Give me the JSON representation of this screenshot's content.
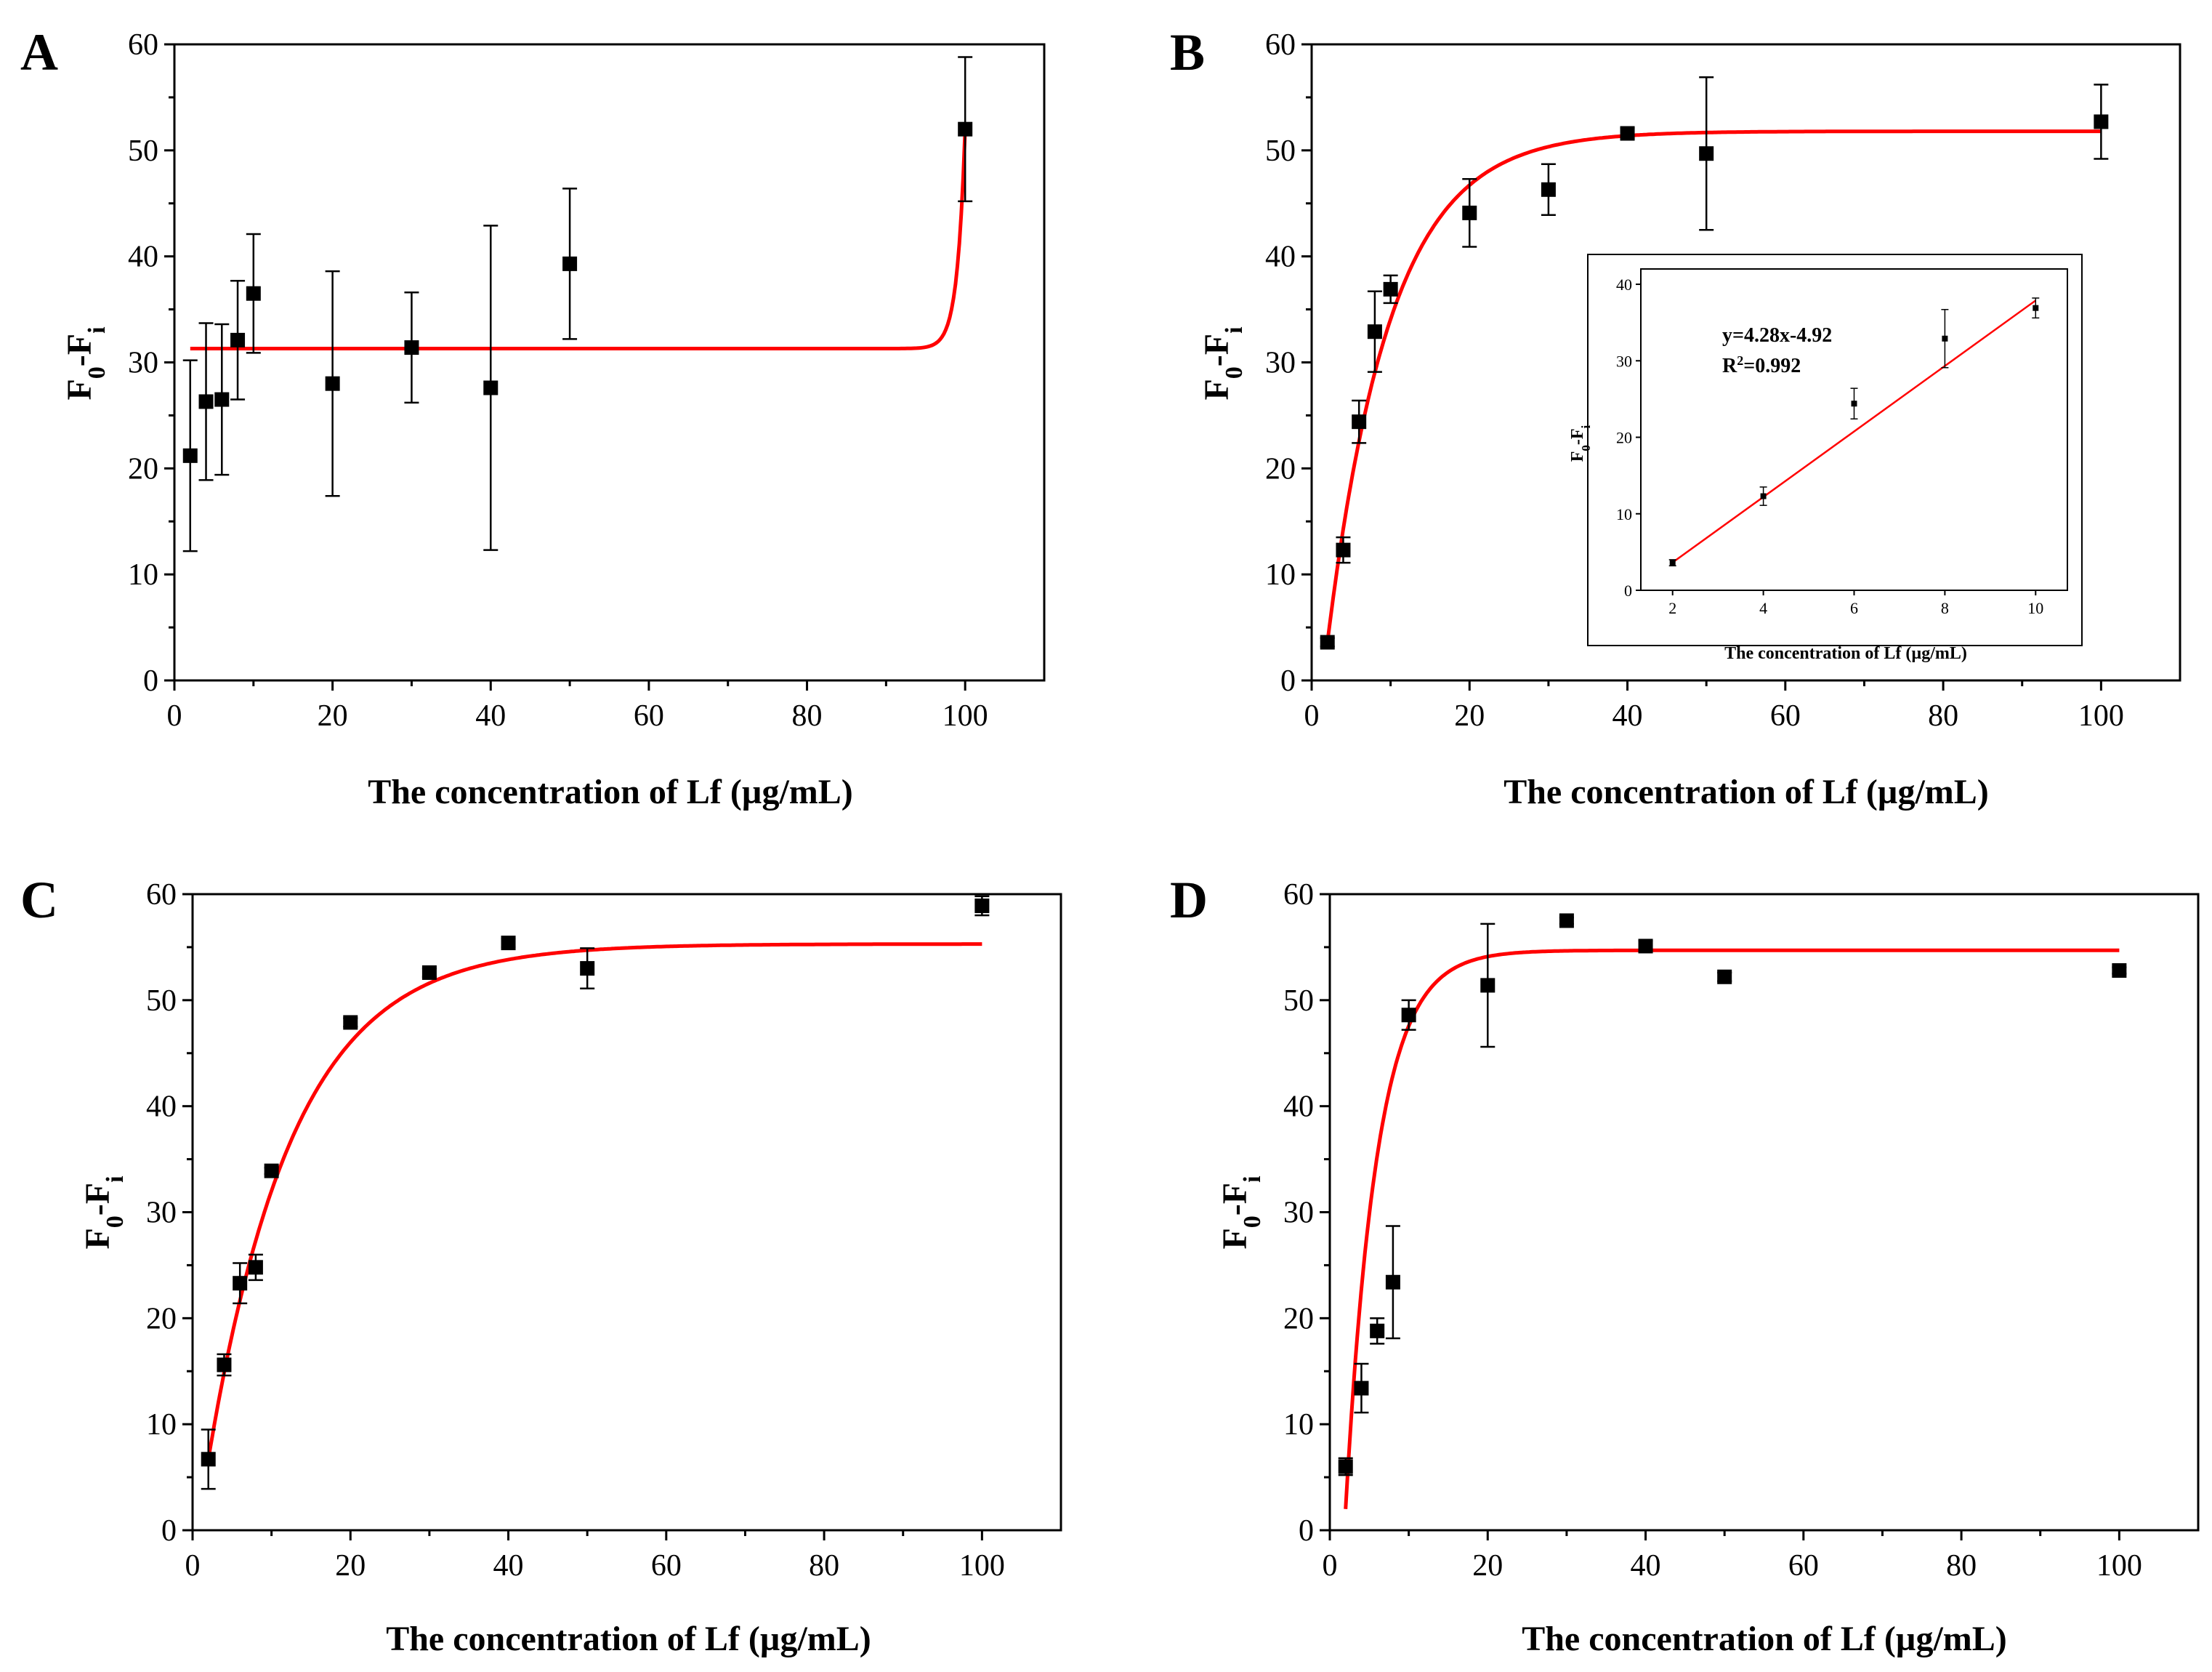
{
  "chart_data": [
    {
      "id": "A",
      "type": "scatter",
      "panel_label": "A",
      "xlabel": "The concentration of Lf (µg/mL)",
      "ylabel_main": "F",
      "ylabel_sub0": "0",
      "ylabel_dash": "-F",
      "ylabel_subi": "i",
      "xlim": [
        0,
        110
      ],
      "ylim": [
        0,
        60
      ],
      "xticks": [
        0,
        20,
        40,
        60,
        80,
        100
      ],
      "yticks": [
        0,
        10,
        20,
        30,
        40,
        50,
        60
      ],
      "x": [
        2,
        4,
        6,
        8,
        10,
        20,
        30,
        40,
        50,
        100
      ],
      "y": [
        21.2,
        26.3,
        26.5,
        32.1,
        36.5,
        28.0,
        31.4,
        27.6,
        39.3,
        52.0
      ],
      "yerr": [
        9.0,
        7.4,
        7.1,
        5.6,
        5.6,
        10.6,
        5.2,
        15.3,
        7.1,
        6.8
      ],
      "fit": {
        "kind": "step",
        "base": 31.3,
        "top": 52.0,
        "x_start": 2,
        "x_end": 100
      }
    },
    {
      "id": "B",
      "type": "scatter",
      "panel_label": "B",
      "xlabel": "The concentration of Lf (µg/mL)",
      "ylabel_main": "F",
      "ylabel_sub0": "0",
      "ylabel_dash": "-F",
      "ylabel_subi": "i",
      "xlim": [
        0,
        110
      ],
      "ylim": [
        0,
        60
      ],
      "xticks": [
        0,
        20,
        40,
        60,
        80,
        100
      ],
      "yticks": [
        0,
        10,
        20,
        30,
        40,
        50,
        60
      ],
      "x": [
        2,
        4,
        6,
        8,
        10,
        20,
        30,
        40,
        50,
        100
      ],
      "y": [
        3.6,
        12.3,
        24.4,
        32.9,
        36.9,
        44.1,
        46.3,
        51.6,
        49.7,
        52.7
      ],
      "yerr": [
        0.4,
        1.2,
        2.0,
        3.8,
        1.3,
        3.2,
        2.4,
        0.5,
        7.2,
        3.5
      ],
      "fit": {
        "kind": "exp",
        "ymax": 51.8,
        "k": 0.125,
        "x0": 2,
        "y0": 3.6,
        "x_start": 2,
        "x_end": 100
      },
      "inset": {
        "type": "line",
        "equation": "y=4.28x-4.92",
        "r2_label": "R",
        "r2_sup": "2",
        "r2_value": "=0.992",
        "xlabel": "The concentration of Lf (µg/mL)",
        "ylabel_main": "F",
        "ylabel_sub0": "0",
        "ylabel_dash": "-F",
        "ylabel_subi": "i",
        "xlim": [
          1.3,
          10.7
        ],
        "ylim": [
          0,
          42
        ],
        "xticks": [
          2,
          4,
          6,
          8,
          10
        ],
        "yticks": [
          0,
          10,
          20,
          30,
          40
        ],
        "x": [
          2,
          4,
          6,
          8,
          10
        ],
        "y": [
          3.6,
          12.3,
          24.4,
          32.9,
          36.9
        ],
        "yerr": [
          0.4,
          1.2,
          2.0,
          3.8,
          1.3
        ],
        "slope": 4.28,
        "intercept": -4.92
      }
    },
    {
      "id": "C",
      "type": "scatter",
      "panel_label": "C",
      "xlabel": "The concentration of Lf (µg/mL)",
      "ylabel_main": "F",
      "ylabel_sub0": "0",
      "ylabel_dash": "-F",
      "ylabel_subi": "i",
      "xlim": [
        0,
        110
      ],
      "ylim": [
        0,
        60
      ],
      "xticks": [
        0,
        20,
        40,
        60,
        80,
        100
      ],
      "yticks": [
        0,
        10,
        20,
        30,
        40,
        50,
        60
      ],
      "x": [
        2,
        4,
        6,
        8,
        10,
        20,
        30,
        40,
        50,
        100
      ],
      "y": [
        6.7,
        15.6,
        23.3,
        24.8,
        33.9,
        47.9,
        52.6,
        55.4,
        53.0,
        58.9
      ],
      "yerr": [
        2.8,
        1.0,
        1.9,
        1.2,
        0.3,
        0.4,
        0.4,
        0.4,
        1.9,
        0.9
      ],
      "fit": {
        "kind": "exp",
        "ymax": 55.3,
        "k": 0.092,
        "x0": 2,
        "y0": 6.7,
        "x_start": 2,
        "x_end": 100
      }
    },
    {
      "id": "D",
      "type": "scatter",
      "panel_label": "D",
      "xlabel": "The concentration of Lf (µg/mL)",
      "ylabel_main": "F",
      "ylabel_sub0": "0",
      "ylabel_dash": "-F",
      "ylabel_subi": "i",
      "xlim": [
        0,
        110
      ],
      "ylim": [
        0,
        60
      ],
      "xticks": [
        0,
        20,
        40,
        60,
        80,
        100
      ],
      "yticks": [
        0,
        10,
        20,
        30,
        40,
        50,
        60
      ],
      "x": [
        2,
        4,
        6,
        8,
        10,
        20,
        30,
        40,
        50,
        100
      ],
      "y": [
        6.0,
        13.4,
        18.8,
        23.4,
        48.6,
        51.4,
        57.5,
        55.1,
        52.2,
        52.8
      ],
      "yerr": [
        0.8,
        2.3,
        1.2,
        5.3,
        1.4,
        5.8,
        0.3,
        0.5,
        0.4,
        0.3
      ],
      "fit": {
        "kind": "exp",
        "ymax": 54.7,
        "k": 0.25,
        "x0": 2,
        "y0": 2.0,
        "x_start": 2,
        "x_end": 100
      }
    }
  ]
}
